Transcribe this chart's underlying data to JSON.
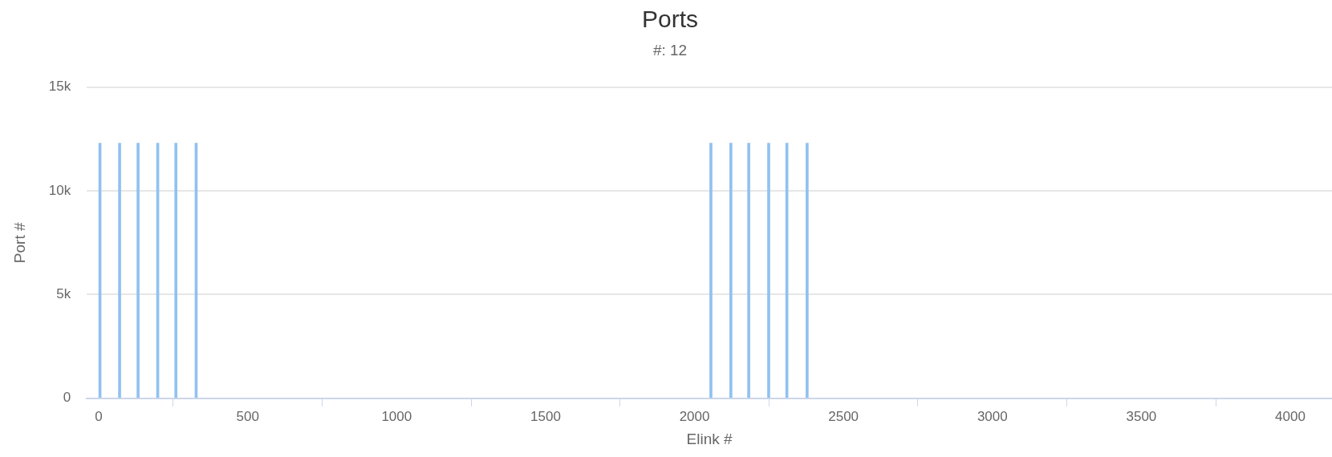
{
  "chart_data": {
    "type": "bar",
    "title": "Ports",
    "subtitle": "#: 12",
    "xlabel": "Elink #",
    "ylabel": "Port #",
    "x": [
      4,
      70,
      132,
      198,
      259,
      327,
      2055,
      2122,
      2182,
      2249,
      2310,
      2378
    ],
    "values": [
      12300,
      12300,
      12300,
      12300,
      12300,
      12300,
      12300,
      12300,
      12300,
      12300,
      12300,
      12300
    ],
    "color": "#90c2f0",
    "xlim": [
      -40,
      4140
    ],
    "xticks": [
      0,
      500,
      1000,
      1500,
      2000,
      2500,
      3000,
      3500,
      4000
    ],
    "ylim": [
      0,
      15000
    ],
    "yticks": [
      0,
      {
        "value": 5000,
        "label": "5k"
      },
      {
        "value": 10000,
        "label": "10k"
      },
      {
        "value": 15000,
        "label": "15k"
      }
    ],
    "grid": "y",
    "legend": false
  }
}
